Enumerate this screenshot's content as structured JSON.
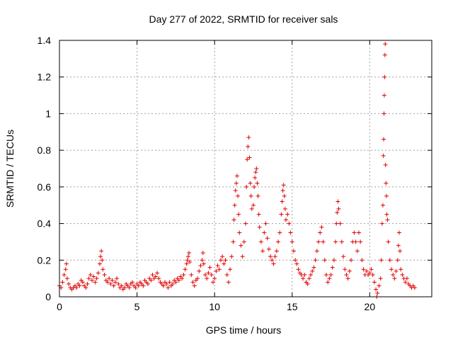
{
  "chart_data": {
    "type": "scatter",
    "title": "Day 277 of 2022, SRMTID for receiver sals",
    "xlabel": "GPS time / hours",
    "ylabel": "SRMTID / TECUs",
    "xlim": [
      0,
      24
    ],
    "ylim": [
      0,
      1.4
    ],
    "xticks": [
      0,
      5,
      10,
      15,
      20
    ],
    "xtick_labels": [
      "0",
      "5",
      "10",
      "15",
      "20"
    ],
    "yticks": [
      0,
      0.2,
      0.4,
      0.6,
      0.8,
      1,
      1.2,
      1.4
    ],
    "ytick_labels": [
      "0",
      "0.2",
      "0.4",
      "0.6",
      "0.8",
      "1",
      "1.2",
      "1.4"
    ],
    "grid": true,
    "marker": "+",
    "marker_color": "#e00000",
    "series": [
      {
        "name": "SRMTID",
        "points": [
          [
            0.0,
            0.06
          ],
          [
            0.1,
            0.05
          ],
          [
            0.2,
            0.08
          ],
          [
            0.3,
            0.12
          ],
          [
            0.4,
            0.15
          ],
          [
            0.45,
            0.18
          ],
          [
            0.5,
            0.1
          ],
          [
            0.6,
            0.07
          ],
          [
            0.7,
            0.05
          ],
          [
            0.8,
            0.04
          ],
          [
            0.9,
            0.05
          ],
          [
            1.0,
            0.06
          ],
          [
            1.1,
            0.05
          ],
          [
            1.2,
            0.07
          ],
          [
            1.3,
            0.06
          ],
          [
            1.4,
            0.09
          ],
          [
            1.5,
            0.08
          ],
          [
            1.6,
            0.06
          ],
          [
            1.7,
            0.05
          ],
          [
            1.8,
            0.07
          ],
          [
            1.9,
            0.1
          ],
          [
            2.0,
            0.12
          ],
          [
            2.1,
            0.09
          ],
          [
            2.2,
            0.11
          ],
          [
            2.3,
            0.08
          ],
          [
            2.4,
            0.1
          ],
          [
            2.5,
            0.13
          ],
          [
            2.6,
            0.18
          ],
          [
            2.65,
            0.22
          ],
          [
            2.7,
            0.25
          ],
          [
            2.75,
            0.2
          ],
          [
            2.8,
            0.15
          ],
          [
            2.9,
            0.12
          ],
          [
            3.0,
            0.09
          ],
          [
            3.1,
            0.08
          ],
          [
            3.2,
            0.1
          ],
          [
            3.3,
            0.07
          ],
          [
            3.4,
            0.09
          ],
          [
            3.5,
            0.06
          ],
          [
            3.6,
            0.08
          ],
          [
            3.7,
            0.1
          ],
          [
            3.8,
            0.07
          ],
          [
            3.9,
            0.05
          ],
          [
            4.0,
            0.06
          ],
          [
            4.1,
            0.04
          ],
          [
            4.2,
            0.05
          ],
          [
            4.3,
            0.07
          ],
          [
            4.4,
            0.06
          ],
          [
            4.5,
            0.05
          ],
          [
            4.6,
            0.07
          ],
          [
            4.7,
            0.08
          ],
          [
            4.8,
            0.06
          ],
          [
            4.9,
            0.05
          ],
          [
            5.0,
            0.07
          ],
          [
            5.1,
            0.06
          ],
          [
            5.2,
            0.08
          ],
          [
            5.3,
            0.07
          ],
          [
            5.4,
            0.06
          ],
          [
            5.5,
            0.09
          ],
          [
            5.6,
            0.08
          ],
          [
            5.7,
            0.07
          ],
          [
            5.8,
            0.1
          ],
          [
            5.9,
            0.09
          ],
          [
            6.0,
            0.12
          ],
          [
            6.1,
            0.1
          ],
          [
            6.2,
            0.11
          ],
          [
            6.3,
            0.13
          ],
          [
            6.4,
            0.1
          ],
          [
            6.5,
            0.08
          ],
          [
            6.6,
            0.07
          ],
          [
            6.7,
            0.06
          ],
          [
            6.8,
            0.08
          ],
          [
            6.9,
            0.07
          ],
          [
            7.0,
            0.05
          ],
          [
            7.1,
            0.08
          ],
          [
            7.2,
            0.06
          ],
          [
            7.3,
            0.07
          ],
          [
            7.4,
            0.09
          ],
          [
            7.5,
            0.08
          ],
          [
            7.6,
            0.1
          ],
          [
            7.7,
            0.09
          ],
          [
            7.8,
            0.11
          ],
          [
            7.9,
            0.1
          ],
          [
            8.0,
            0.12
          ],
          [
            8.1,
            0.15
          ],
          [
            8.2,
            0.18
          ],
          [
            8.25,
            0.2
          ],
          [
            8.3,
            0.22
          ],
          [
            8.35,
            0.24
          ],
          [
            8.4,
            0.19
          ],
          [
            8.5,
            0.12
          ],
          [
            8.6,
            0.08
          ],
          [
            8.7,
            0.06
          ],
          [
            8.8,
            0.09
          ],
          [
            8.9,
            0.1
          ],
          [
            9.0,
            0.14
          ],
          [
            9.1,
            0.17
          ],
          [
            9.2,
            0.2
          ],
          [
            9.25,
            0.24
          ],
          [
            9.3,
            0.18
          ],
          [
            9.4,
            0.12
          ],
          [
            9.5,
            0.1
          ],
          [
            9.6,
            0.13
          ],
          [
            9.7,
            0.16
          ],
          [
            9.8,
            0.12
          ],
          [
            9.9,
            0.08
          ],
          [
            10.0,
            0.1
          ],
          [
            10.1,
            0.14
          ],
          [
            10.2,
            0.17
          ],
          [
            10.3,
            0.15
          ],
          [
            10.4,
            0.2
          ],
          [
            10.5,
            0.22
          ],
          [
            10.6,
            0.18
          ],
          [
            10.7,
            0.2
          ],
          [
            10.8,
            0.12
          ],
          [
            10.9,
            0.08
          ],
          [
            11.0,
            0.15
          ],
          [
            11.1,
            0.22
          ],
          [
            11.2,
            0.3
          ],
          [
            11.25,
            0.42
          ],
          [
            11.3,
            0.5
          ],
          [
            11.35,
            0.58
          ],
          [
            11.4,
            0.62
          ],
          [
            11.45,
            0.66
          ],
          [
            11.5,
            0.55
          ],
          [
            11.55,
            0.45
          ],
          [
            11.6,
            0.35
          ],
          [
            11.7,
            0.28
          ],
          [
            11.8,
            0.22
          ],
          [
            11.9,
            0.3
          ],
          [
            12.0,
            0.4
          ],
          [
            12.05,
            0.6
          ],
          [
            12.1,
            0.75
          ],
          [
            12.15,
            0.82
          ],
          [
            12.2,
            0.87
          ],
          [
            12.25,
            0.76
          ],
          [
            12.3,
            0.62
          ],
          [
            12.35,
            0.55
          ],
          [
            12.4,
            0.48
          ],
          [
            12.5,
            0.5
          ],
          [
            12.55,
            0.6
          ],
          [
            12.6,
            0.65
          ],
          [
            12.65,
            0.68
          ],
          [
            12.7,
            0.7
          ],
          [
            12.75,
            0.62
          ],
          [
            12.8,
            0.55
          ],
          [
            12.85,
            0.45
          ],
          [
            12.9,
            0.38
          ],
          [
            13.0,
            0.3
          ],
          [
            13.1,
            0.25
          ],
          [
            13.2,
            0.35
          ],
          [
            13.3,
            0.4
          ],
          [
            13.4,
            0.32
          ],
          [
            13.5,
            0.26
          ],
          [
            13.6,
            0.22
          ],
          [
            13.7,
            0.2
          ],
          [
            13.8,
            0.18
          ],
          [
            13.9,
            0.22
          ],
          [
            14.0,
            0.25
          ],
          [
            14.1,
            0.3
          ],
          [
            14.2,
            0.35
          ],
          [
            14.3,
            0.45
          ],
          [
            14.35,
            0.52
          ],
          [
            14.4,
            0.58
          ],
          [
            14.45,
            0.61
          ],
          [
            14.5,
            0.55
          ],
          [
            14.55,
            0.48
          ],
          [
            14.6,
            0.42
          ],
          [
            14.7,
            0.45
          ],
          [
            14.8,
            0.4
          ],
          [
            14.9,
            0.35
          ],
          [
            15.0,
            0.3
          ],
          [
            15.1,
            0.25
          ],
          [
            15.2,
            0.2
          ],
          [
            15.3,
            0.18
          ],
          [
            15.4,
            0.15
          ],
          [
            15.5,
            0.13
          ],
          [
            15.6,
            0.12
          ],
          [
            15.7,
            0.1
          ],
          [
            15.8,
            0.12
          ],
          [
            15.9,
            0.08
          ],
          [
            16.0,
            0.07
          ],
          [
            16.1,
            0.1
          ],
          [
            16.2,
            0.12
          ],
          [
            16.3,
            0.14
          ],
          [
            16.4,
            0.16
          ],
          [
            16.5,
            0.2
          ],
          [
            16.6,
            0.25
          ],
          [
            16.7,
            0.3
          ],
          [
            16.8,
            0.35
          ],
          [
            16.9,
            0.38
          ],
          [
            17.0,
            0.3
          ],
          [
            17.1,
            0.2
          ],
          [
            17.2,
            0.12
          ],
          [
            17.3,
            0.08
          ],
          [
            17.4,
            0.1
          ],
          [
            17.5,
            0.12
          ],
          [
            17.6,
            0.16
          ],
          [
            17.7,
            0.2
          ],
          [
            17.8,
            0.3
          ],
          [
            17.85,
            0.4
          ],
          [
            17.9,
            0.46
          ],
          [
            17.95,
            0.52
          ],
          [
            18.0,
            0.48
          ],
          [
            18.1,
            0.4
          ],
          [
            18.2,
            0.3
          ],
          [
            18.3,
            0.22
          ],
          [
            18.4,
            0.15
          ],
          [
            18.5,
            0.12
          ],
          [
            18.6,
            0.1
          ],
          [
            18.7,
            0.14
          ],
          [
            18.8,
            0.2
          ],
          [
            18.9,
            0.3
          ],
          [
            19.0,
            0.35
          ],
          [
            19.1,
            0.3
          ],
          [
            19.2,
            0.25
          ],
          [
            19.3,
            0.35
          ],
          [
            19.4,
            0.3
          ],
          [
            19.5,
            0.2
          ],
          [
            19.6,
            0.15
          ],
          [
            19.7,
            0.12
          ],
          [
            19.8,
            0.14
          ],
          [
            19.9,
            0.12
          ],
          [
            20.0,
            0.13
          ],
          [
            20.1,
            0.15
          ],
          [
            20.2,
            0.12
          ],
          [
            20.3,
            0.08
          ],
          [
            20.4,
            0.04
          ],
          [
            20.45,
            0.0
          ],
          [
            20.5,
            0.02
          ],
          [
            20.6,
            0.06
          ],
          [
            20.7,
            0.1
          ],
          [
            20.75,
            0.2
          ],
          [
            20.8,
            0.4
          ],
          [
            20.85,
            0.5
          ],
          [
            20.88,
            0.77
          ],
          [
            20.9,
            0.86
          ],
          [
            20.92,
            1.0
          ],
          [
            20.94,
            1.1
          ],
          [
            20.96,
            1.2
          ],
          [
            20.98,
            1.32
          ],
          [
            21.0,
            1.38
          ],
          [
            21.02,
            0.72
          ],
          [
            21.05,
            0.62
          ],
          [
            21.08,
            0.55
          ],
          [
            21.1,
            0.45
          ],
          [
            21.15,
            0.42
          ],
          [
            21.2,
            0.3
          ],
          [
            21.3,
            0.2
          ],
          [
            21.4,
            0.15
          ],
          [
            21.5,
            0.12
          ],
          [
            21.6,
            0.1
          ],
          [
            21.7,
            0.14
          ],
          [
            21.8,
            0.2
          ],
          [
            21.85,
            0.28
          ],
          [
            21.9,
            0.35
          ],
          [
            21.95,
            0.25
          ],
          [
            22.0,
            0.15
          ],
          [
            22.1,
            0.12
          ],
          [
            22.2,
            0.1
          ],
          [
            22.3,
            0.08
          ],
          [
            22.4,
            0.1
          ],
          [
            22.5,
            0.07
          ],
          [
            22.6,
            0.06
          ],
          [
            22.7,
            0.05
          ],
          [
            22.8,
            0.06
          ],
          [
            22.9,
            0.05
          ]
        ]
      }
    ]
  }
}
